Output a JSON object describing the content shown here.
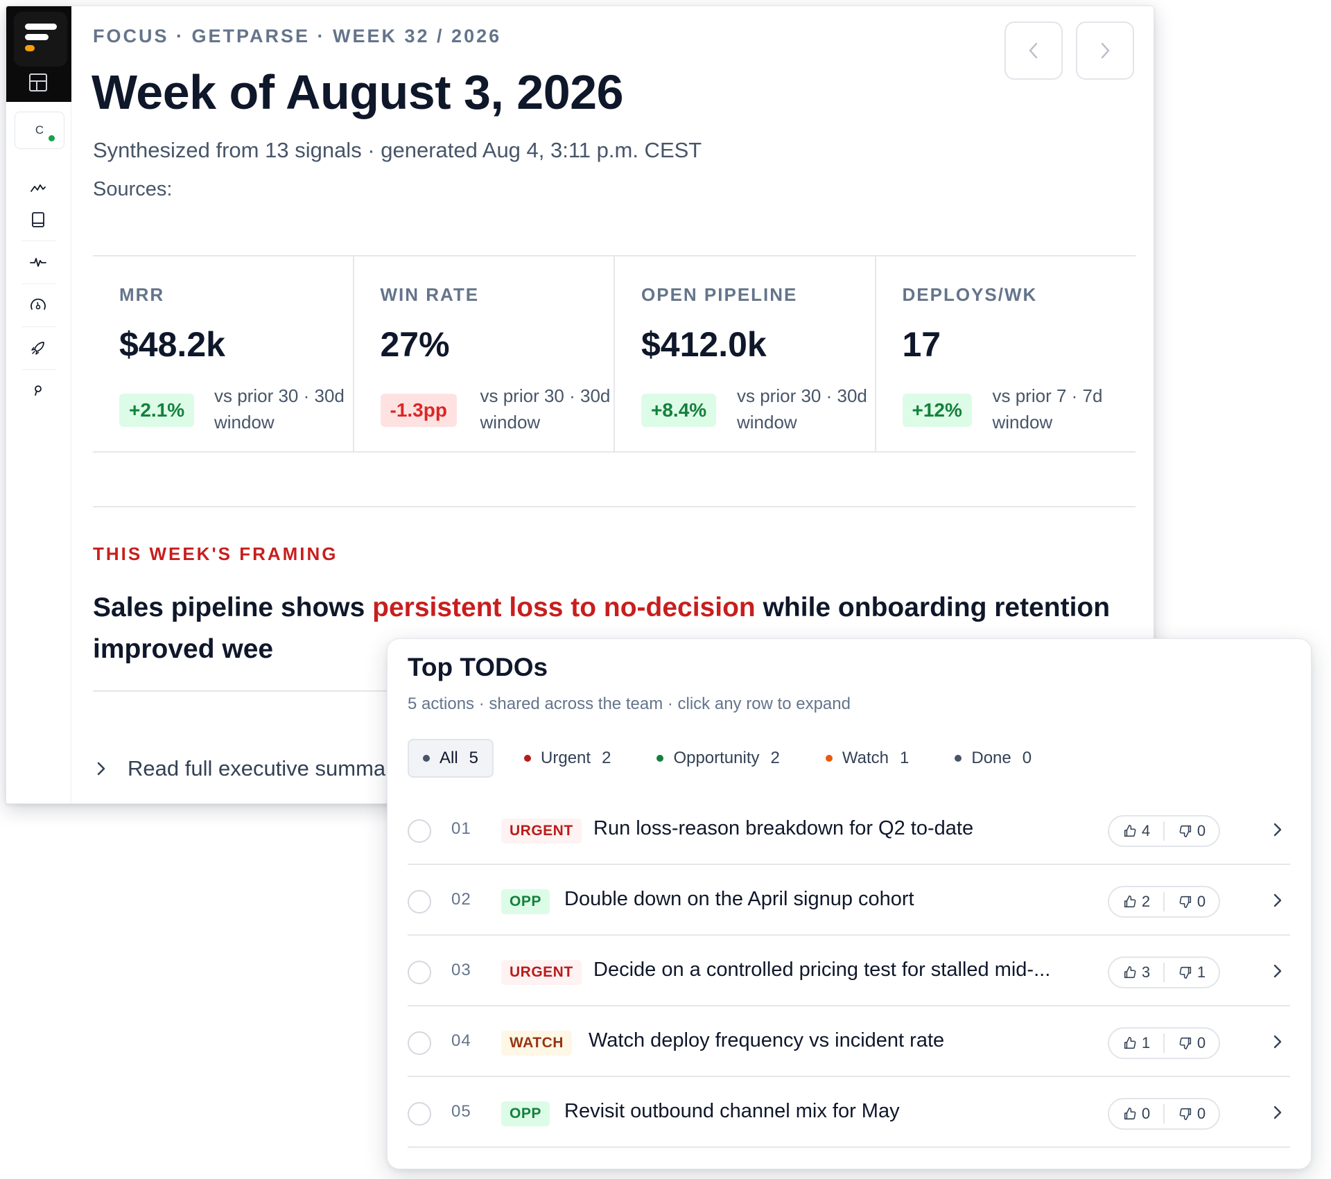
{
  "header": {
    "eyebrow": "FOCUS · GETPARSE · WEEK 32 / 2026",
    "title": "Week of August 3, 2026",
    "subtitle": "Synthesized from 13 signals · generated Aug 4, 3:11 p.m. CEST",
    "sources_label": "Sources:"
  },
  "sidebar": {
    "workspace_letter": "C",
    "status_color": "#16a34a",
    "nav_icons": [
      "layout-icon",
      "activity-icon",
      "book-icon",
      "pulse-icon",
      "gauge-icon",
      "rocket-icon",
      "key-icon"
    ]
  },
  "kpis": [
    {
      "label": "MRR",
      "value": "$48.2k",
      "delta": "+2.1%",
      "trend": "pos",
      "note": "vs prior 30 · 30d window"
    },
    {
      "label": "WIN RATE",
      "value": "27%",
      "delta": "-1.3pp",
      "trend": "neg",
      "note": "vs prior 30 · 30d window"
    },
    {
      "label": "OPEN PIPELINE",
      "value": "$412.0k",
      "delta": "+8.4%",
      "trend": "pos",
      "note": "vs prior 30 · 30d window"
    },
    {
      "label": "DEPLOYS/WK",
      "value": "17",
      "delta": "+12%",
      "trend": "pos",
      "note": "vs prior 7 · 7d window"
    }
  ],
  "framing": {
    "label": "THIS WEEK'S FRAMING",
    "text_before": "Sales pipeline shows ",
    "text_highlight": "persistent loss to no-decision",
    "text_after": " while onboarding retention improved wee",
    "read_more": "Read full executive summa"
  },
  "todos": {
    "title": "Top TODOs",
    "subtitle": "5 actions · shared across the team · click any row to expand",
    "filters": [
      {
        "label": "All",
        "count": "5",
        "color": "#475569",
        "active": true
      },
      {
        "label": "Urgent",
        "count": "2",
        "color": "#b91c1c",
        "active": false
      },
      {
        "label": "Opportunity",
        "count": "2",
        "color": "#15803d",
        "active": false
      },
      {
        "label": "Watch",
        "count": "1",
        "color": "#ea580c",
        "active": false
      },
      {
        "label": "Done",
        "count": "0",
        "color": "#475569",
        "active": false
      }
    ],
    "items": [
      {
        "num": "01",
        "tag": "URGENT",
        "kind": "urgent",
        "text": "Run loss-reason breakdown for Q2 to-date",
        "up": "4",
        "down": "0"
      },
      {
        "num": "02",
        "tag": "OPP",
        "kind": "opp",
        "text": "Double down on the April signup cohort",
        "up": "2",
        "down": "0"
      },
      {
        "num": "03",
        "tag": "URGENT",
        "kind": "urgent",
        "text": "Decide on a controlled pricing test for stalled mid-...",
        "up": "3",
        "down": "1"
      },
      {
        "num": "04",
        "tag": "WATCH",
        "kind": "watch",
        "text": "Watch deploy frequency vs incident rate",
        "up": "1",
        "down": "0"
      },
      {
        "num": "05",
        "tag": "OPP",
        "kind": "opp",
        "text": "Revisit outbound channel mix for May",
        "up": "0",
        "down": "0"
      }
    ]
  },
  "colors": {
    "accent_red": "#c81e1e",
    "positive": "#15803d",
    "logo_accent": "#f59e0b"
  }
}
